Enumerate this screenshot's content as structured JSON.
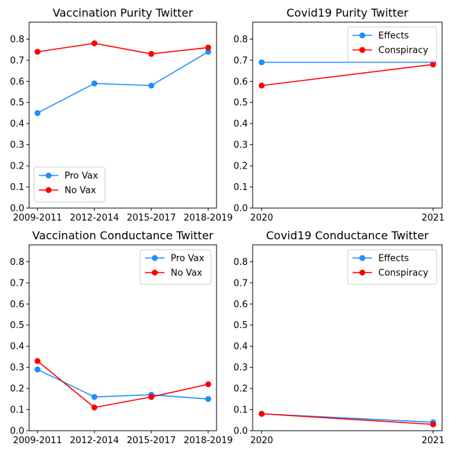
{
  "chart_data": [
    {
      "type": "line",
      "title": "Vaccination Purity Twitter",
      "categories": [
        "2009-2011",
        "2012-2014",
        "2015-2017",
        "2018-2019"
      ],
      "ylim": [
        0,
        0.88
      ],
      "yticks": [
        "0.0",
        "0.1",
        "0.2",
        "0.3",
        "0.4",
        "0.5",
        "0.6",
        "0.7",
        "0.8"
      ],
      "legend": "lower-left",
      "grid": false,
      "series": [
        {
          "name": "Pro Vax",
          "color": "#1f8fff",
          "values": [
            0.45,
            0.59,
            0.58,
            0.74
          ]
        },
        {
          "name": "No Vax",
          "color": "#ff0000",
          "values": [
            0.74,
            0.78,
            0.73,
            0.76
          ]
        }
      ]
    },
    {
      "type": "line",
      "title": "Covid19 Purity Twitter",
      "categories": [
        "2020",
        "2021"
      ],
      "ylim": [
        0,
        0.88
      ],
      "yticks": [
        "0.0",
        "0.1",
        "0.2",
        "0.3",
        "0.4",
        "0.5",
        "0.6",
        "0.7",
        "0.8"
      ],
      "legend": "upper-right",
      "grid": false,
      "series": [
        {
          "name": "Effects",
          "color": "#1f8fff",
          "values": [
            0.69,
            0.69
          ]
        },
        {
          "name": "Conspiracy",
          "color": "#ff0000",
          "values": [
            0.58,
            0.68
          ]
        }
      ]
    },
    {
      "type": "line",
      "title": "Vaccination Conductance Twitter",
      "categories": [
        "2009-2011",
        "2012-2014",
        "2015-2017",
        "2018-2019"
      ],
      "ylim": [
        0,
        0.88
      ],
      "yticks": [
        "0.0",
        "0.1",
        "0.2",
        "0.3",
        "0.4",
        "0.5",
        "0.6",
        "0.7",
        "0.8"
      ],
      "legend": "upper-right",
      "grid": false,
      "series": [
        {
          "name": "Pro Vax",
          "color": "#1f8fff",
          "values": [
            0.29,
            0.16,
            0.17,
            0.15
          ]
        },
        {
          "name": "No Vax",
          "color": "#ff0000",
          "values": [
            0.33,
            0.11,
            0.16,
            0.22
          ]
        }
      ]
    },
    {
      "type": "line",
      "title": "Covid19 Conductance Twitter",
      "categories": [
        "2020",
        "2021"
      ],
      "ylim": [
        0,
        0.88
      ],
      "yticks": [
        "0.0",
        "0.1",
        "0.2",
        "0.3",
        "0.4",
        "0.5",
        "0.6",
        "0.7",
        "0.8"
      ],
      "legend": "upper-right",
      "grid": false,
      "series": [
        {
          "name": "Effects",
          "color": "#1f8fff",
          "values": [
            0.08,
            0.04
          ]
        },
        {
          "name": "Conspiracy",
          "color": "#ff0000",
          "values": [
            0.08,
            0.03
          ]
        }
      ]
    }
  ]
}
